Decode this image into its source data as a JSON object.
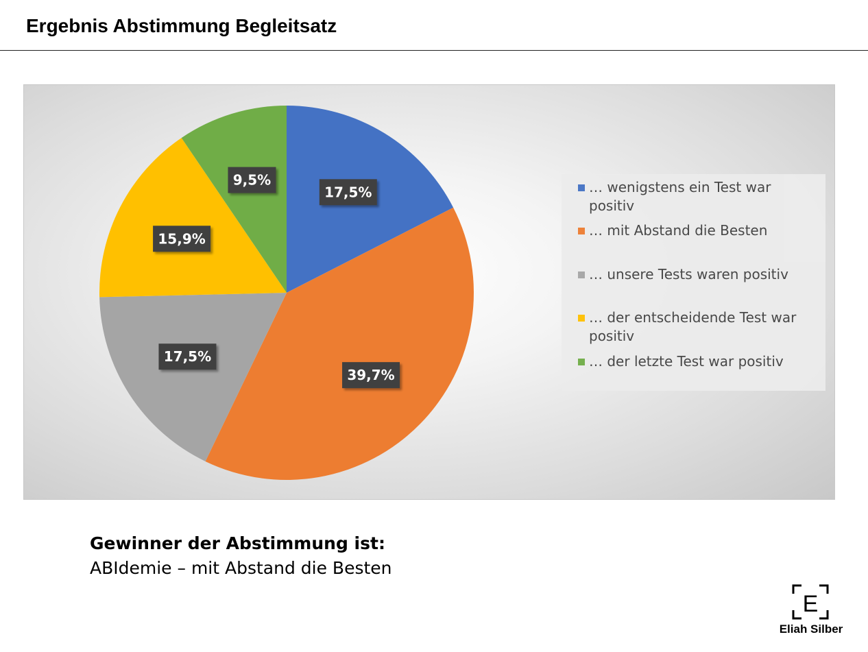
{
  "header": {
    "title": "Ergebnis Abstimmung Begleitsatz"
  },
  "chart_data": {
    "type": "pie",
    "title": "",
    "legend_position": "right",
    "unit": "%",
    "slices": [
      {
        "label": "… wenigstens ein Test war positiv",
        "value": 17.5,
        "display": "17,5%",
        "color": "#4472C4"
      },
      {
        "label": "… mit Abstand die Besten",
        "value": 39.7,
        "display": "39,7%",
        "color": "#ED7D31"
      },
      {
        "label": "… unsere Tests waren positiv",
        "value": 17.5,
        "display": "17,5%",
        "color": "#A5A5A5"
      },
      {
        "label": "… der entscheidende Test war positiv",
        "value": 15.9,
        "display": "15,9%",
        "color": "#FFC000"
      },
      {
        "label": "… der letzte Test war positiv",
        "value": 9.5,
        "display": "9,5%",
        "color": "#70AD47"
      }
    ]
  },
  "winner": {
    "heading": "Gewinner der Abstimmung ist:",
    "text": "ABIdemie – mit Abstand die Besten"
  },
  "logo": {
    "letter": "E",
    "name": "Eliah Silber"
  }
}
